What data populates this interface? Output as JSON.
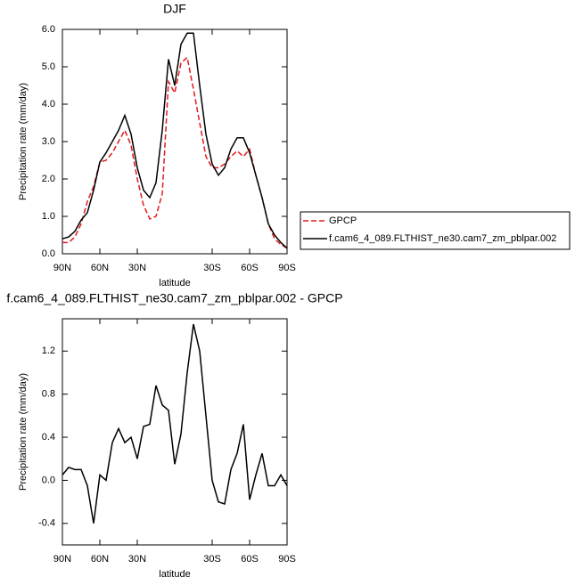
{
  "chart_data": [
    {
      "type": "line",
      "title": "DJF",
      "x_label": "latitude",
      "y_label": "Precipitation rate (mm/day)",
      "x": [
        90,
        85,
        80,
        75,
        70,
        65,
        60,
        55,
        50,
        45,
        40,
        35,
        30,
        25,
        20,
        15,
        10,
        5,
        0,
        -5,
        -10,
        -15,
        -20,
        -25,
        -30,
        -35,
        -40,
        -45,
        -50,
        -55,
        -60,
        -65,
        -70,
        -75,
        -80,
        -85,
        -90
      ],
      "series": [
        {
          "name": "GPCP",
          "color": "#e31a1c",
          "dashed": true,
          "values": [
            0.3,
            0.3,
            0.45,
            0.8,
            1.4,
            1.8,
            2.45,
            2.5,
            2.7,
            3.0,
            3.3,
            2.9,
            2.0,
            1.3,
            0.93,
            1.0,
            1.6,
            4.6,
            4.3,
            5.1,
            5.25,
            4.4,
            3.5,
            2.6,
            2.3,
            2.3,
            2.4,
            2.6,
            2.75,
            2.6,
            2.8,
            2.1,
            1.5,
            0.8,
            0.4,
            0.25,
            0.15
          ]
        },
        {
          "name": "f.cam6_4_089.FLTHIST_ne30.cam7_zm_pblpar.002",
          "color": "#000000",
          "dashed": false,
          "values": [
            0.4,
            0.45,
            0.6,
            0.9,
            1.1,
            1.7,
            2.45,
            2.7,
            3.0,
            3.3,
            3.7,
            3.2,
            2.3,
            1.7,
            1.5,
            1.9,
            3.3,
            5.2,
            4.5,
            5.6,
            5.9,
            5.9,
            4.5,
            3.2,
            2.4,
            2.1,
            2.3,
            2.8,
            3.1,
            3.1,
            2.7,
            2.1,
            1.5,
            0.8,
            0.5,
            0.3,
            0.15
          ]
        }
      ],
      "xlim": [
        90,
        -90
      ],
      "xticks": [
        {
          "value": 90,
          "label": "90N"
        },
        {
          "value": 60,
          "label": "60N"
        },
        {
          "value": 30,
          "label": "30N"
        },
        {
          "value": -30,
          "label": "30S"
        },
        {
          "value": -60,
          "label": "60S"
        },
        {
          "value": -90,
          "label": "90S"
        }
      ],
      "ylim": [
        0,
        6
      ],
      "yticks": [
        {
          "value": 0,
          "label": "0.0"
        },
        {
          "value": 1,
          "label": "1.0"
        },
        {
          "value": 2,
          "label": "2.0"
        },
        {
          "value": 3,
          "label": "3.0"
        },
        {
          "value": 4,
          "label": "4.0"
        },
        {
          "value": 5,
          "label": "5.0"
        },
        {
          "value": 6,
          "label": "6.0"
        }
      ],
      "legend": "right"
    },
    {
      "type": "line",
      "title": "f.cam6_4_089.FLTHIST_ne30.cam7_zm_pblpar.002 - GPCP",
      "x_label": "latitude",
      "y_label": "Precipitation rate (mm/day)",
      "x": [
        90,
        85,
        80,
        75,
        70,
        65,
        60,
        55,
        50,
        45,
        40,
        35,
        30,
        25,
        20,
        15,
        10,
        5,
        0,
        -5,
        -10,
        -15,
        -20,
        -25,
        -30,
        -35,
        -40,
        -45,
        -50,
        -55,
        -60,
        -65,
        -70,
        -75,
        -80,
        -85,
        -90
      ],
      "series": [
        {
          "color": "#000000",
          "dashed": false,
          "values": [
            0.05,
            0.12,
            0.1,
            0.1,
            -0.05,
            -0.4,
            0.05,
            0.0,
            0.35,
            0.48,
            0.35,
            0.4,
            0.2,
            0.5,
            0.52,
            0.88,
            0.7,
            0.65,
            0.15,
            0.43,
            1.0,
            1.45,
            1.2,
            0.6,
            0.0,
            -0.2,
            -0.22,
            0.1,
            0.25,
            0.52,
            -0.18,
            0.05,
            0.25,
            -0.05,
            -0.05,
            0.05,
            -0.05
          ]
        }
      ],
      "xlim": [
        90,
        -90
      ],
      "xticks": [
        {
          "value": 90,
          "label": "90N"
        },
        {
          "value": 60,
          "label": "60N"
        },
        {
          "value": 30,
          "label": "30N"
        },
        {
          "value": -30,
          "label": "30S"
        },
        {
          "value": -60,
          "label": "60S"
        },
        {
          "value": -90,
          "label": "90S"
        }
      ],
      "ylim": [
        -0.6,
        1.5
      ],
      "yticks": [
        {
          "value": -0.4,
          "label": "-0.4"
        },
        {
          "value": 0,
          "label": "0.0"
        },
        {
          "value": 0.4,
          "label": "0.4"
        },
        {
          "value": 0.8,
          "label": "0.8"
        },
        {
          "value": 1.2,
          "label": "1.2"
        }
      ]
    }
  ]
}
